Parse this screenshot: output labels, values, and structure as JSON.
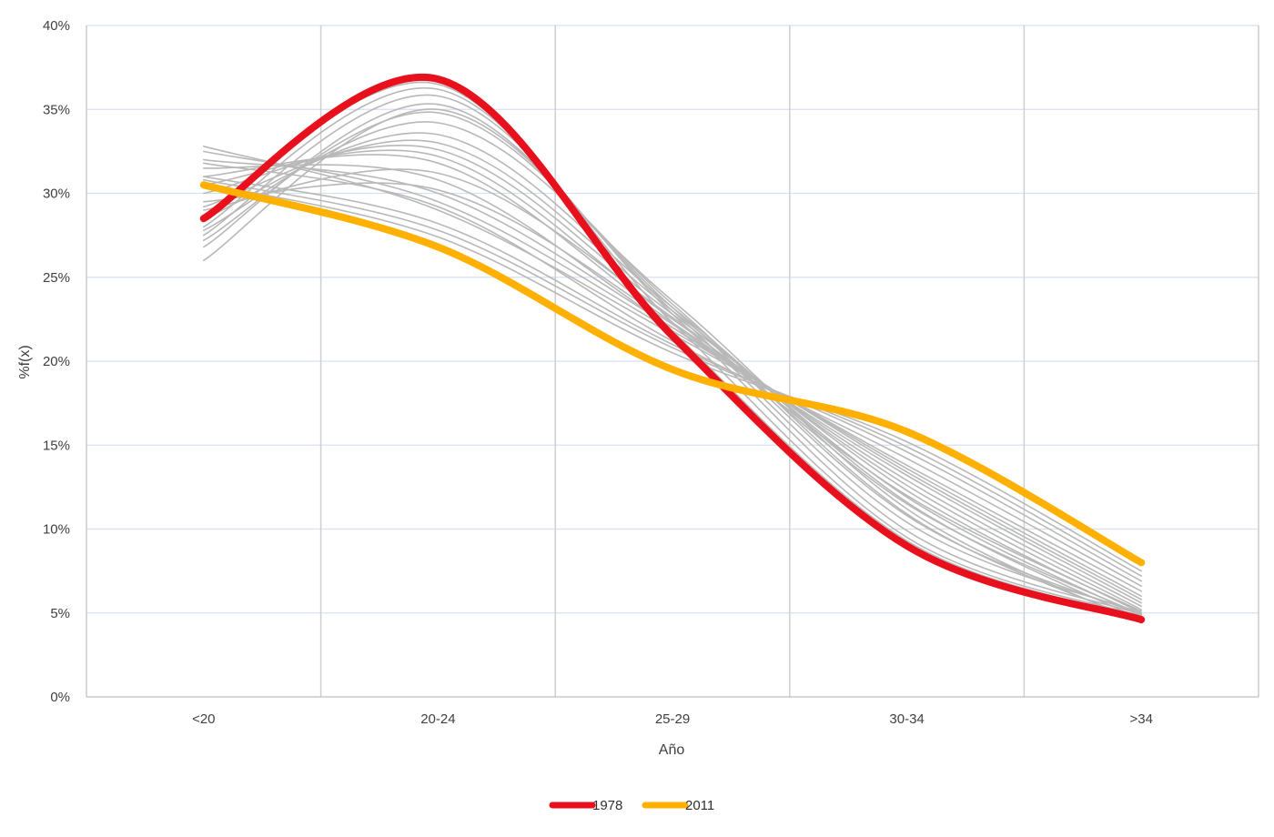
{
  "chart_data": {
    "type": "line",
    "title": "",
    "xlabel": "Año",
    "ylabel": "%f(x)",
    "categories": [
      "<20",
      "20-24",
      "25-29",
      "30-34",
      ">34"
    ],
    "ylim": [
      0,
      40
    ],
    "yticks": [
      0,
      5,
      10,
      15,
      20,
      25,
      30,
      35,
      40
    ],
    "ytick_labels": [
      "0%",
      "5%",
      "10%",
      "15%",
      "20%",
      "25%",
      "30%",
      "35%",
      "40%"
    ],
    "grid": true,
    "legend_position": "bottom",
    "series": [
      {
        "name": "1978",
        "color": "#e8101c",
        "values": [
          28.5,
          36.8,
          21.5,
          9.0,
          4.6
        ],
        "highlight": true
      },
      {
        "name": "2011",
        "color": "#ffb000",
        "values": [
          30.5,
          26.8,
          19.5,
          15.8,
          8.0
        ],
        "highlight": true
      }
    ],
    "background_series_color": "#b8b8b8",
    "background_series": [
      [
        28.7,
        36.5,
        21.8,
        9.3,
        4.7
      ],
      [
        28.0,
        36.2,
        22.3,
        9.5,
        4.8
      ],
      [
        27.5,
        35.8,
        22.8,
        9.9,
        4.9
      ],
      [
        26.8,
        35.3,
        23.0,
        10.4,
        5.0
      ],
      [
        26.0,
        35.0,
        23.2,
        10.8,
        4.9
      ],
      [
        27.2,
        34.8,
        23.4,
        10.9,
        4.5
      ],
      [
        27.8,
        34.2,
        23.6,
        11.2,
        4.4
      ],
      [
        28.5,
        33.5,
        23.2,
        11.6,
        4.6
      ],
      [
        29.2,
        33.0,
        23.0,
        11.9,
        4.8
      ],
      [
        30.0,
        32.6,
        22.8,
        12.3,
        5.0
      ],
      [
        30.5,
        32.2,
        22.5,
        12.6,
        5.2
      ],
      [
        31.0,
        31.8,
        22.3,
        12.9,
        5.4
      ],
      [
        31.5,
        30.8,
        22.0,
        13.2,
        5.6
      ],
      [
        32.0,
        30.0,
        22.0,
        13.4,
        5.8
      ],
      [
        32.5,
        29.5,
        21.8,
        13.6,
        6.0
      ],
      [
        32.8,
        29.0,
        21.6,
        13.8,
        6.3
      ],
      [
        31.8,
        29.2,
        21.2,
        14.2,
        6.6
      ],
      [
        31.0,
        28.2,
        21.0,
        14.6,
        6.9
      ],
      [
        30.8,
        27.8,
        20.8,
        14.9,
        7.2
      ],
      [
        30.6,
        27.4,
        20.5,
        15.2,
        7.5
      ],
      [
        29.5,
        30.2,
        22.2,
        12.0,
        5.1
      ],
      [
        29.0,
        31.2,
        22.6,
        11.5,
        4.9
      ]
    ]
  }
}
